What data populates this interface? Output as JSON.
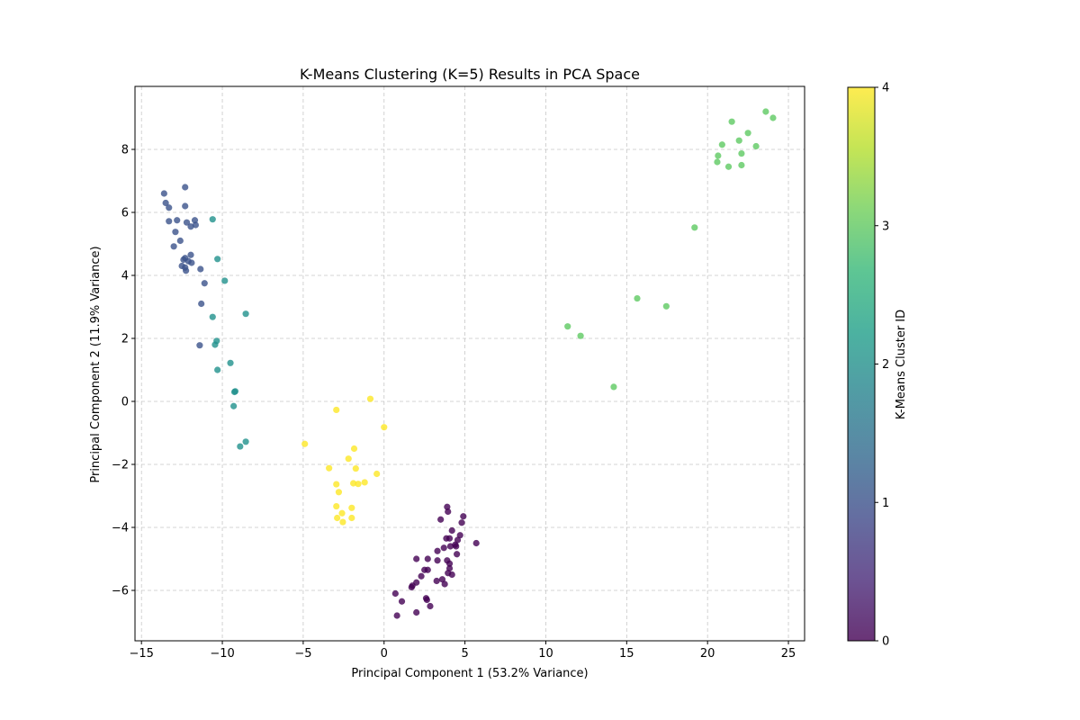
{
  "chart_data": {
    "type": "scatter",
    "title": "K-Means Clustering (K=5) Results in PCA Space",
    "xlabel": "Principal Component 1 (53.2% Variance)",
    "ylabel": "Principal Component 2 (11.9% Variance)",
    "xlim": [
      -15.4,
      26
    ],
    "ylim": [
      -7.6,
      10
    ],
    "xticks": [
      -15,
      -10,
      -5,
      0,
      5,
      10,
      15,
      20,
      25
    ],
    "yticks": [
      -6,
      -4,
      -2,
      0,
      2,
      4,
      6,
      8
    ],
    "xtick_labels": [
      "−15",
      "−10",
      "−5",
      "0",
      "5",
      "10",
      "15",
      "20",
      "25"
    ],
    "ytick_labels": [
      "−6",
      "−4",
      "−2",
      "0",
      "2",
      "4",
      "6",
      "8"
    ],
    "grid": true,
    "colorbar": {
      "label": "K-Means Cluster ID",
      "range": [
        0,
        4
      ],
      "ticks": [
        0,
        1,
        2,
        3,
        4
      ],
      "tick_labels": [
        "0",
        "1",
        "2",
        "3",
        "4"
      ],
      "colormap": "viridis"
    },
    "series": [
      {
        "cluster": 0,
        "color": "#440154",
        "points": [
          [
            3.9,
            -3.35
          ],
          [
            3.95,
            -3.5
          ],
          [
            4.9,
            -3.65
          ],
          [
            3.5,
            -3.75
          ],
          [
            4.8,
            -3.85
          ],
          [
            4.2,
            -4.1
          ],
          [
            4.7,
            -4.25
          ],
          [
            3.85,
            -4.35
          ],
          [
            4.05,
            -4.35
          ],
          [
            4.55,
            -4.4
          ],
          [
            4.4,
            -4.55
          ],
          [
            4.45,
            -4.6
          ],
          [
            4.1,
            -4.6
          ],
          [
            5.7,
            -4.5
          ],
          [
            3.7,
            -4.65
          ],
          [
            3.3,
            -4.75
          ],
          [
            4.5,
            -4.85
          ],
          [
            2.0,
            -5.0
          ],
          [
            2.7,
            -5.0
          ],
          [
            3.9,
            -5.05
          ],
          [
            3.3,
            -5.05
          ],
          [
            4.05,
            -5.15
          ],
          [
            4.05,
            -5.3
          ],
          [
            2.5,
            -5.35
          ],
          [
            2.7,
            -5.35
          ],
          [
            3.95,
            -5.45
          ],
          [
            4.2,
            -5.5
          ],
          [
            2.3,
            -5.55
          ],
          [
            3.6,
            -5.65
          ],
          [
            3.25,
            -5.7
          ],
          [
            2.0,
            -5.75
          ],
          [
            3.75,
            -5.8
          ],
          [
            1.75,
            -5.85
          ],
          [
            1.7,
            -5.9
          ],
          [
            0.7,
            -6.1
          ],
          [
            2.6,
            -6.25
          ],
          [
            2.65,
            -6.3
          ],
          [
            1.1,
            -6.35
          ],
          [
            2.85,
            -6.5
          ],
          [
            2.0,
            -6.7
          ],
          [
            0.8,
            -6.8
          ]
        ]
      },
      {
        "cluster": 1,
        "color": "#3b528b",
        "points": [
          [
            -12.3,
            6.8
          ],
          [
            -13.6,
            6.6
          ],
          [
            -13.5,
            6.3
          ],
          [
            -13.3,
            6.15
          ],
          [
            -12.3,
            6.2
          ],
          [
            -13.3,
            5.72
          ],
          [
            -12.8,
            5.75
          ],
          [
            -12.2,
            5.68
          ],
          [
            -11.7,
            5.75
          ],
          [
            -11.95,
            5.55
          ],
          [
            -11.65,
            5.6
          ],
          [
            -12.9,
            5.38
          ],
          [
            -12.6,
            5.1
          ],
          [
            -13.0,
            4.92
          ],
          [
            -11.95,
            4.65
          ],
          [
            -12.3,
            4.55
          ],
          [
            -12.4,
            4.5
          ],
          [
            -12.1,
            4.45
          ],
          [
            -11.9,
            4.4
          ],
          [
            -12.5,
            4.3
          ],
          [
            -12.3,
            4.25
          ],
          [
            -12.25,
            4.15
          ],
          [
            -11.35,
            4.2
          ],
          [
            -11.1,
            3.75
          ],
          [
            -11.3,
            3.1
          ],
          [
            -11.4,
            1.78
          ]
        ]
      },
      {
        "cluster": 2,
        "color": "#21918c",
        "points": [
          [
            -10.6,
            5.78
          ],
          [
            -10.3,
            4.52
          ],
          [
            -9.85,
            3.83
          ],
          [
            -8.55,
            2.78
          ],
          [
            -10.6,
            2.68
          ],
          [
            -10.35,
            1.92
          ],
          [
            -10.45,
            1.8
          ],
          [
            -9.5,
            1.22
          ],
          [
            -10.3,
            1.0
          ],
          [
            -9.25,
            0.3
          ],
          [
            -9.2,
            0.32
          ],
          [
            -9.3,
            -0.15
          ],
          [
            -8.55,
            -1.28
          ],
          [
            -8.9,
            -1.43
          ]
        ]
      },
      {
        "cluster": 3,
        "color": "#5ec962",
        "points": [
          [
            23.6,
            9.2
          ],
          [
            24.05,
            9.0
          ],
          [
            21.5,
            8.88
          ],
          [
            22.5,
            8.52
          ],
          [
            21.95,
            8.28
          ],
          [
            20.9,
            8.15
          ],
          [
            23.0,
            8.1
          ],
          [
            22.1,
            7.87
          ],
          [
            20.65,
            7.8
          ],
          [
            20.6,
            7.6
          ],
          [
            22.1,
            7.5
          ],
          [
            21.3,
            7.45
          ],
          [
            19.2,
            5.52
          ],
          [
            15.65,
            3.27
          ],
          [
            17.45,
            3.02
          ],
          [
            11.35,
            2.38
          ],
          [
            12.15,
            2.08
          ],
          [
            14.2,
            0.46
          ]
        ]
      },
      {
        "cluster": 4,
        "color": "#fde725",
        "points": [
          [
            -0.85,
            0.08
          ],
          [
            -2.95,
            -0.27
          ],
          [
            0.0,
            -0.82
          ],
          [
            -4.9,
            -1.35
          ],
          [
            -1.85,
            -1.5
          ],
          [
            -2.2,
            -1.82
          ],
          [
            -3.4,
            -2.12
          ],
          [
            -1.75,
            -2.13
          ],
          [
            -0.45,
            -2.3
          ],
          [
            -1.2,
            -2.57
          ],
          [
            -1.9,
            -2.6
          ],
          [
            -1.6,
            -2.62
          ],
          [
            -2.95,
            -2.63
          ],
          [
            -2.8,
            -2.88
          ],
          [
            -2.95,
            -3.33
          ],
          [
            -2.0,
            -3.38
          ],
          [
            -2.6,
            -3.55
          ],
          [
            -2.9,
            -3.7
          ],
          [
            -2.0,
            -3.7
          ],
          [
            -2.55,
            -3.83
          ]
        ]
      }
    ]
  }
}
